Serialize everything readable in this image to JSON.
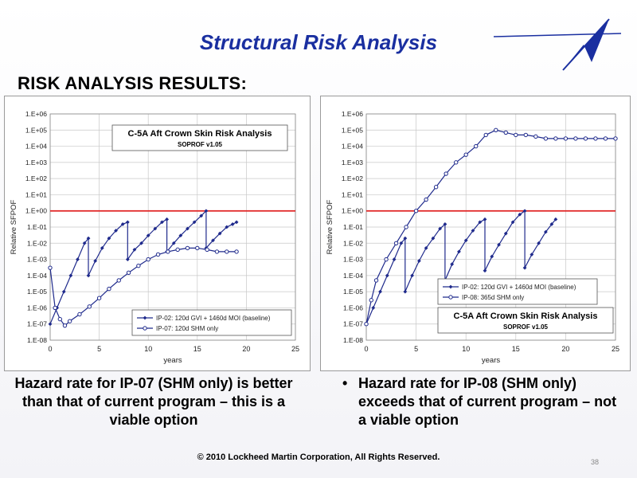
{
  "slide": {
    "title": "Structural Risk Analysis",
    "subtitle": "RISK ANALYSIS RESULTS:",
    "caption_left": "Hazard rate for IP-07 (SHM only) is better than that of current program – this is  a viable option",
    "caption_right": "Hazard rate for IP-08 (SHM only) exceeds that of current program – not a viable option",
    "bullet": "•",
    "footer": "© 2010 Lockheed Martin Corporation, All Rights Reserved.",
    "page_number": "38",
    "colors": {
      "title": "#1a2fa0",
      "series": "#1f2a8c",
      "threshold": "#e02020",
      "grid": "#c8c8c8"
    }
  },
  "chart_data": [
    {
      "type": "line",
      "title": "C-5A Aft Crown Skin Risk Analysis",
      "subtitle": "SOPROF v1.05",
      "xlabel": "years",
      "ylabel": "Relative SFPOF",
      "xlim": [
        0,
        25
      ],
      "xticks": [
        "0",
        "5",
        "10",
        "15",
        "20",
        "25"
      ],
      "ylim_log10": [
        -8,
        6
      ],
      "yticks": [
        "1.E-08",
        "1.E-07",
        "1.E-06",
        "1.E-05",
        "1.E-04",
        "1.E-03",
        "1.E-02",
        "1.E-01",
        "1.E+00",
        "1.E+01",
        "1.E+02",
        "1.E+03",
        "1.E+04",
        "1.E+05",
        "1.E+06"
      ],
      "yscale": "log",
      "grid": true,
      "threshold": 1,
      "legend_position": "bottom-right",
      "series": [
        {
          "name": "IP-02: 120d GVI + 1460d MOI (baseline)",
          "marker": "filled-diamond",
          "x": [
            0,
            0.7,
            1.4,
            2.1,
            2.8,
            3.5,
            3.9,
            3.9,
            4.6,
            5.3,
            6.0,
            6.7,
            7.4,
            7.9,
            7.9,
            8.6,
            9.3,
            10.0,
            10.7,
            11.4,
            11.9,
            11.9,
            12.6,
            13.3,
            14.0,
            14.7,
            15.4,
            15.9,
            15.9,
            16.6,
            17.3,
            18.0,
            18.6,
            19.0
          ],
          "y": [
            1e-07,
            1e-06,
            1e-05,
            0.0001,
            0.001,
            0.01,
            0.02,
            0.0001,
            0.0008,
            0.005,
            0.02,
            0.06,
            0.15,
            0.2,
            0.001,
            0.004,
            0.01,
            0.03,
            0.08,
            0.2,
            0.3,
            0.003,
            0.01,
            0.03,
            0.08,
            0.2,
            0.5,
            1.0,
            0.005,
            0.015,
            0.04,
            0.1,
            0.15,
            0.2
          ]
        },
        {
          "name": "IP-07: 120d SHM only",
          "marker": "open-circle",
          "x": [
            0,
            0.5,
            1,
            1.5,
            2,
            3,
            4,
            5,
            6,
            7,
            8,
            9,
            10,
            11,
            12,
            13,
            14,
            15,
            16,
            17,
            18,
            19
          ],
          "y": [
            0.0003,
            1e-06,
            2e-07,
            8e-08,
            1.5e-07,
            4e-07,
            1.2e-06,
            4e-06,
            1.5e-05,
            5e-05,
            0.00015,
            0.0004,
            0.001,
            0.002,
            0.003,
            0.004,
            0.005,
            0.005,
            0.004,
            0.003,
            0.003,
            0.003
          ]
        }
      ]
    },
    {
      "type": "line",
      "title": "C-5A Aft Crown Skin Risk Analysis",
      "subtitle": "SOPROF v1.05",
      "xlabel": "years",
      "ylabel": "Relative SFPOF",
      "xlim": [
        0,
        25
      ],
      "xticks": [
        "0",
        "5",
        "10",
        "15",
        "20",
        "25"
      ],
      "ylim_log10": [
        -8,
        6
      ],
      "yticks": [
        "1.E-08",
        "1.E-07",
        "1.E-06",
        "1.E-05",
        "1.E-04",
        "1.E-03",
        "1.E-02",
        "1.E-01",
        "1.E+00",
        "1.E+01",
        "1.E+02",
        "1.E+03",
        "1.E+04",
        "1.E+05",
        "1.E+06"
      ],
      "yscale": "log",
      "grid": true,
      "threshold": 1,
      "legend_position": "bottom-right",
      "series": [
        {
          "name": "IP-02: 120d GVI + 1460d MOI (baseline)",
          "marker": "filled-diamond",
          "x": [
            0,
            0.7,
            1.4,
            2.1,
            2.8,
            3.5,
            3.9,
            3.9,
            4.6,
            5.3,
            6.0,
            6.7,
            7.4,
            7.9,
            7.9,
            8.6,
            9.3,
            10.0,
            10.7,
            11.4,
            11.9,
            11.9,
            12.6,
            13.3,
            14.0,
            14.7,
            15.4,
            15.9,
            15.9,
            16.6,
            17.3,
            18.0,
            18.6,
            19.0
          ],
          "y": [
            1e-07,
            1e-06,
            1e-05,
            0.0001,
            0.001,
            0.01,
            0.02,
            1e-05,
            0.0001,
            0.0008,
            0.005,
            0.02,
            0.08,
            0.15,
            5e-05,
            0.0005,
            0.003,
            0.015,
            0.06,
            0.2,
            0.3,
            0.0002,
            0.0015,
            0.008,
            0.04,
            0.2,
            0.6,
            1.0,
            0.0003,
            0.002,
            0.01,
            0.05,
            0.15,
            0.3
          ]
        },
        {
          "name": "IP-08: 365d SHM only",
          "marker": "open-circle",
          "x": [
            0,
            0.5,
            1,
            2,
            3,
            4,
            5,
            6,
            7,
            8,
            9,
            10,
            11,
            12,
            13,
            14,
            15,
            16,
            17,
            18,
            19,
            20,
            21,
            22,
            23,
            24,
            25
          ],
          "y": [
            1e-07,
            3e-06,
            5e-05,
            0.001,
            0.01,
            0.1,
            1.0,
            5.0,
            30.0,
            200.0,
            1000.0,
            3000.0,
            10000.0,
            50000.0,
            100000.0,
            70000.0,
            50000.0,
            50000.0,
            40000.0,
            30000.0,
            30000.0,
            30000.0,
            30000.0,
            30000.0,
            30000.0,
            30000.0,
            30000.0
          ]
        }
      ]
    }
  ]
}
